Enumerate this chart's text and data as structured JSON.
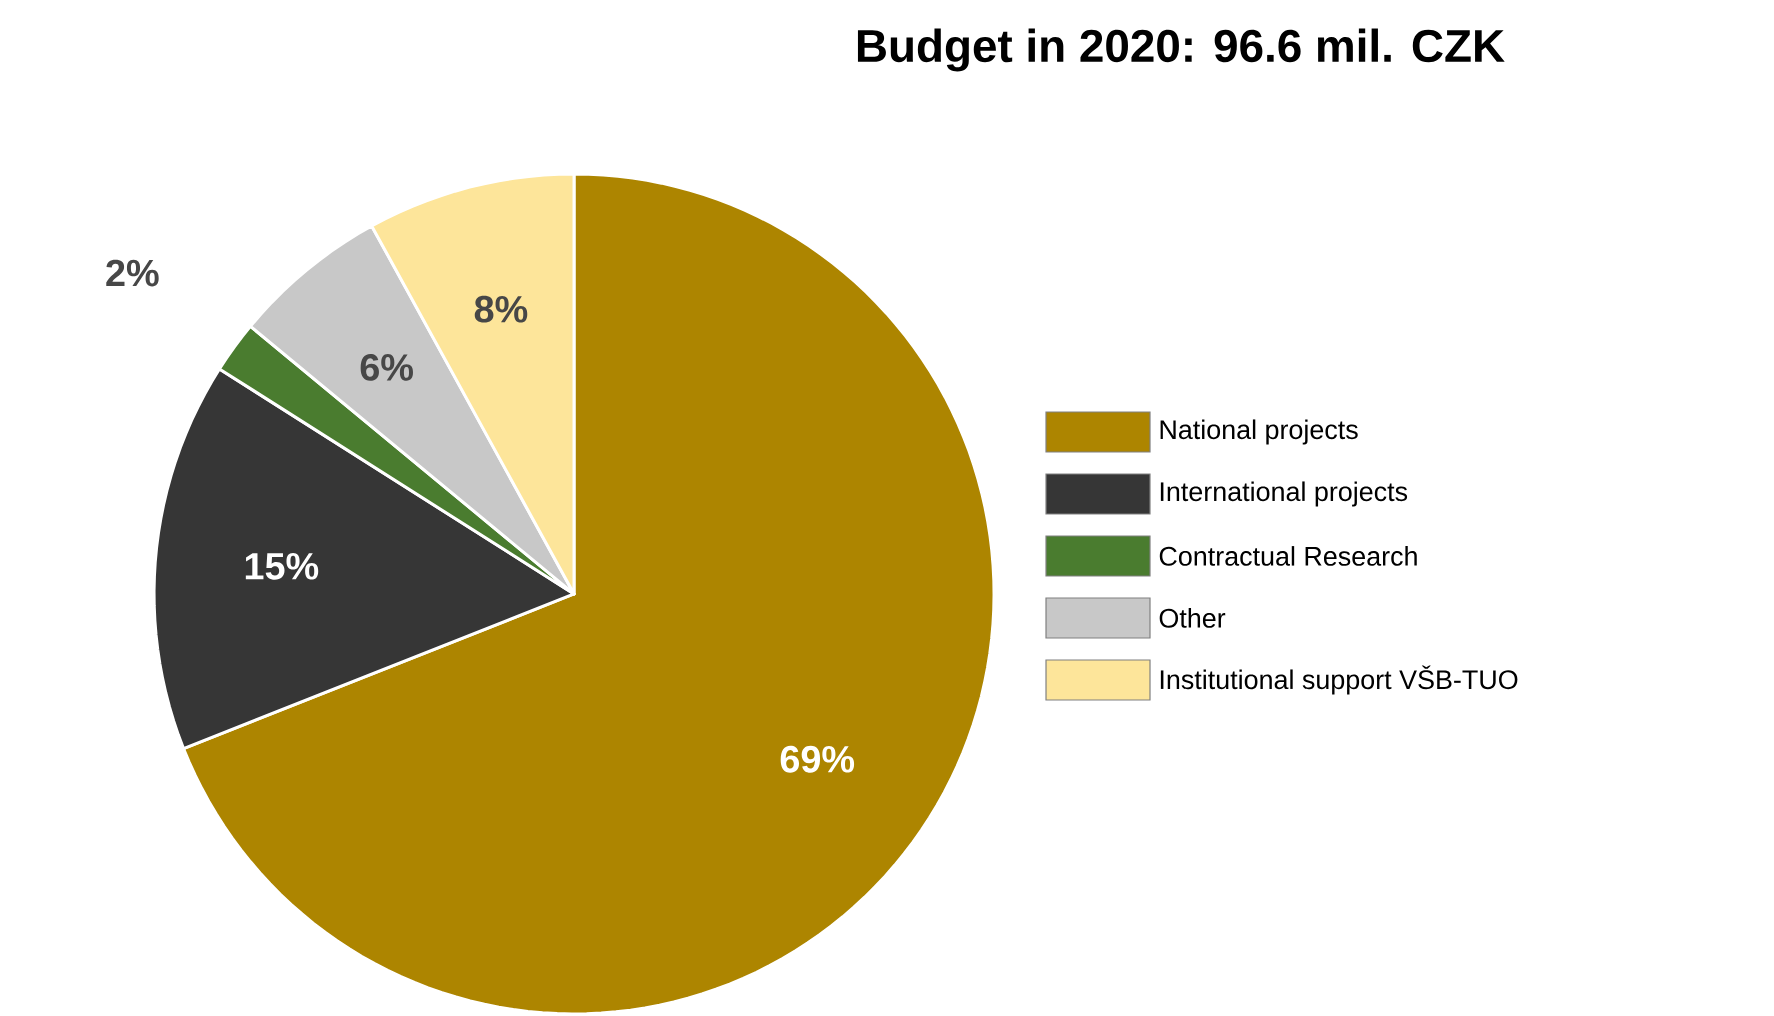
{
  "chart_data": {
    "type": "pie",
    "title": "Budget in 2020: 96.6 mil. CZK",
    "categories": [
      "National projects",
      "International projects",
      "Contractual Research",
      "Other",
      "Institutional support VŠB-TUO"
    ],
    "values": [
      69,
      15,
      2,
      6,
      8
    ],
    "value_labels": [
      "69%",
      "15%",
      "2%",
      "6%",
      "8%"
    ],
    "colors": [
      "#ad8500",
      "#363636",
      "#4a7c2f",
      "#c8c8c8",
      "#fde59a"
    ],
    "legend": "right"
  }
}
